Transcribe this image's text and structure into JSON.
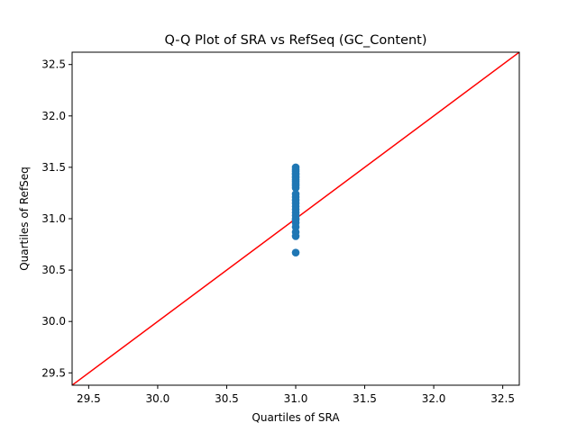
{
  "chart_data": {
    "type": "scatter",
    "title": "Q-Q Plot of SRA vs RefSeq (GC_Content)",
    "xlabel": "Quartiles of SRA",
    "ylabel": "Quartiles of RefSeq",
    "xlim": [
      29.38,
      32.62
    ],
    "ylim": [
      29.38,
      32.62
    ],
    "xticks": [
      29.5,
      30.0,
      30.5,
      31.0,
      31.5,
      32.0,
      32.5
    ],
    "yticks": [
      29.5,
      30.0,
      30.5,
      31.0,
      31.5,
      32.0,
      32.5
    ],
    "grid": false,
    "colors": {
      "points": "#1f77b4",
      "reference_line": "#ff0000"
    },
    "series": [
      {
        "x": [
          31.0,
          31.0,
          31.0,
          31.0,
          31.0,
          31.0,
          31.0,
          31.0,
          31.0,
          31.0,
          31.0,
          31.0,
          31.0,
          31.0,
          31.0,
          31.0,
          31.0,
          31.0,
          31.0,
          31.0,
          31.0,
          31.0,
          31.0,
          31.0,
          31.0,
          31.0,
          31.0
        ],
        "y": [
          30.67,
          30.83,
          30.87,
          30.92,
          30.96,
          30.99,
          31.0,
          31.03,
          31.06,
          31.09,
          31.12,
          31.15,
          31.18,
          31.21,
          31.24,
          31.3,
          31.32,
          31.34,
          31.36,
          31.38,
          31.4,
          31.41,
          31.43,
          31.44,
          31.46,
          31.48,
          31.5
        ]
      }
    ],
    "reference_line": {
      "x": [
        29.38,
        32.62
      ],
      "y": [
        29.38,
        32.62
      ]
    }
  }
}
